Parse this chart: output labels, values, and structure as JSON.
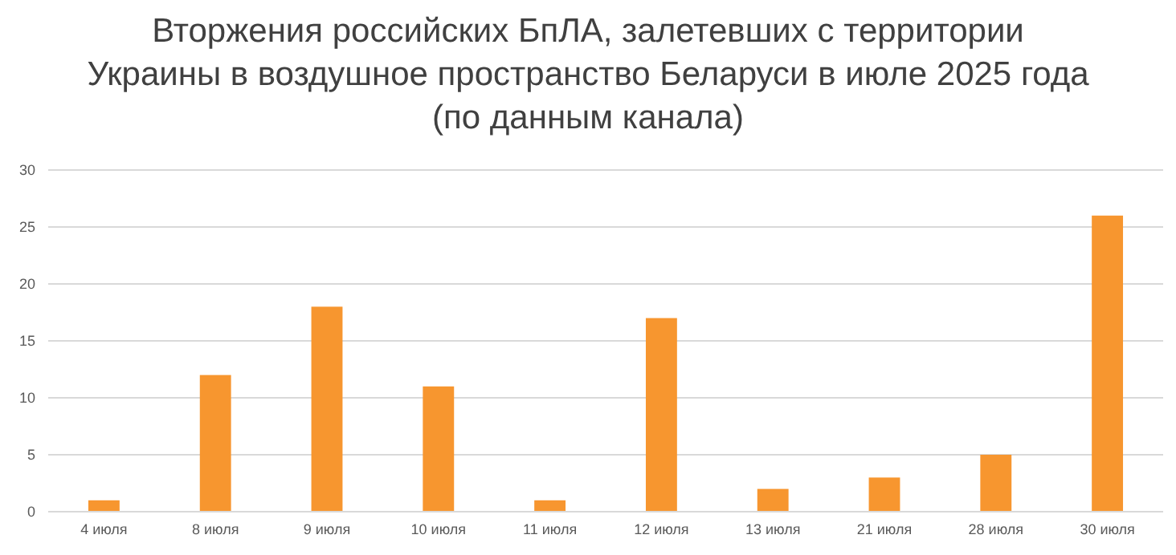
{
  "chart_data": {
    "type": "bar",
    "title": "Вторжения российских БпЛА, залетевших с территории\nУкраины в воздушное пространство Беларуси в июле 2025 года\n(по данным канала)",
    "categories": [
      "4 июля",
      "8 июля",
      "9 июля",
      "10 июля",
      "11 июля",
      "12 июля",
      "13 июля",
      "21 июля",
      "28 июля",
      "30 июля"
    ],
    "values": [
      1,
      12,
      18,
      11,
      1,
      17,
      2,
      3,
      5,
      26
    ],
    "color": "#f7962f",
    "ylim": [
      0,
      30
    ],
    "yticks": [
      0,
      5,
      10,
      15,
      20,
      25,
      30
    ],
    "grid": "y"
  }
}
